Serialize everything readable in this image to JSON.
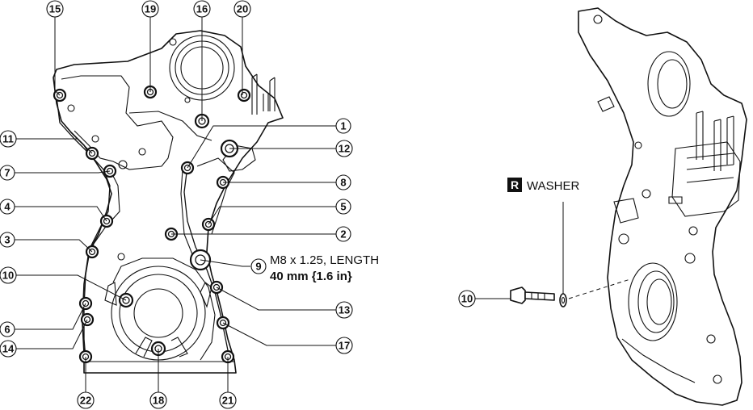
{
  "callouts": [
    "1",
    "2",
    "3",
    "4",
    "5",
    "6",
    "7",
    "8",
    "9",
    "10",
    "11",
    "12",
    "13",
    "14",
    "15",
    "16",
    "17",
    "18",
    "19",
    "20",
    "21",
    "22"
  ],
  "spec": {
    "line1": "M8 x 1.25, LENGTH",
    "line2": "40 mm {1.6 in}"
  },
  "washer": {
    "badge": "R",
    "label": "WASHER"
  },
  "right_callout": "10"
}
